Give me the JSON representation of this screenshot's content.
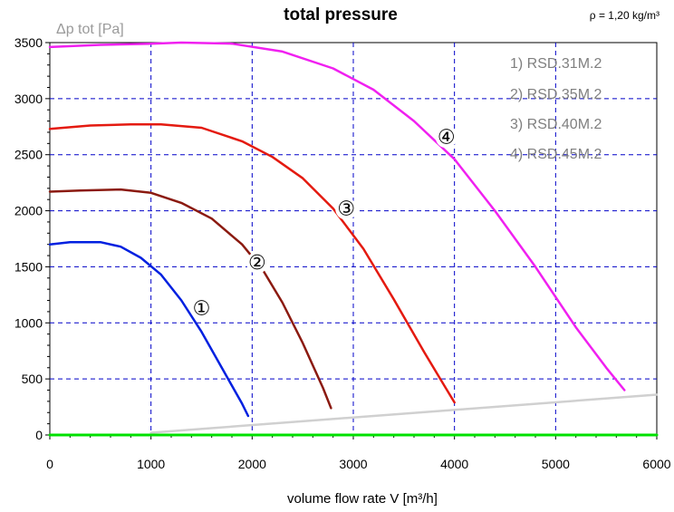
{
  "chart_data": {
    "type": "line",
    "title": "total pressure",
    "ylabel": "Δp tot [Pa]",
    "xlabel": "volume flow rate  V [m³/h]",
    "density_note": "ρ = 1,20 kg/m³",
    "xlim": [
      0,
      6000
    ],
    "ylim": [
      0,
      3500
    ],
    "x_ticks": [
      "0",
      "1000",
      "2000",
      "3000",
      "4000",
      "5000",
      "6000"
    ],
    "y_ticks": [
      "0",
      "500",
      "1000",
      "1500",
      "2000",
      "2500",
      "3000",
      "3500"
    ],
    "grid": true,
    "legend_position": "top-right",
    "legend": [
      "1) RSD.31M.2",
      "2) RSD.35M.2",
      "3) RSD.40M.2",
      "4) RSD.45M.2"
    ],
    "series": [
      {
        "marker": "①",
        "color": "#0020e0",
        "x": [
          0,
          200,
          500,
          700,
          900,
          1100,
          1300,
          1500,
          1700,
          1900,
          1960
        ],
        "y": [
          1700,
          1720,
          1720,
          1680,
          1580,
          1430,
          1200,
          920,
          600,
          280,
          170
        ]
      },
      {
        "marker": "②",
        "color": "#8b1a10",
        "x": [
          0,
          300,
          700,
          1000,
          1300,
          1600,
          1900,
          2100,
          2300,
          2500,
          2700,
          2780
        ],
        "y": [
          2170,
          2180,
          2190,
          2160,
          2070,
          1930,
          1700,
          1480,
          1180,
          820,
          420,
          240
        ]
      },
      {
        "marker": "③",
        "color": "#e41a10",
        "x": [
          0,
          400,
          800,
          1100,
          1500,
          1900,
          2200,
          2500,
          2800,
          3100,
          3400,
          3700,
          3900,
          4000
        ],
        "y": [
          2730,
          2760,
          2770,
          2770,
          2740,
          2620,
          2480,
          2290,
          2020,
          1660,
          1210,
          740,
          440,
          290
        ]
      },
      {
        "marker": "④",
        "color": "#f020f0",
        "x": [
          0,
          500,
          1000,
          1300,
          1800,
          2300,
          2800,
          3200,
          3600,
          4000,
          4400,
          4800,
          5200,
          5500,
          5680
        ],
        "y": [
          3460,
          3480,
          3490,
          3500,
          3490,
          3420,
          3270,
          3080,
          2800,
          2460,
          2000,
          1500,
          960,
          600,
          400
        ]
      },
      {
        "color": "#d0d0d0",
        "x": [
          1000,
          6000
        ],
        "y": [
          20,
          360
        ]
      },
      {
        "color": "#00e000",
        "x": [
          0,
          6000
        ],
        "y": [
          0,
          0
        ]
      }
    ],
    "marker_positions": [
      {
        "label": "①",
        "x": 1500,
        "y": 1070
      },
      {
        "label": "②",
        "x": 2050,
        "y": 1480
      },
      {
        "label": "③",
        "x": 2930,
        "y": 1960
      },
      {
        "label": "④",
        "x": 3920,
        "y": 2600
      }
    ]
  }
}
